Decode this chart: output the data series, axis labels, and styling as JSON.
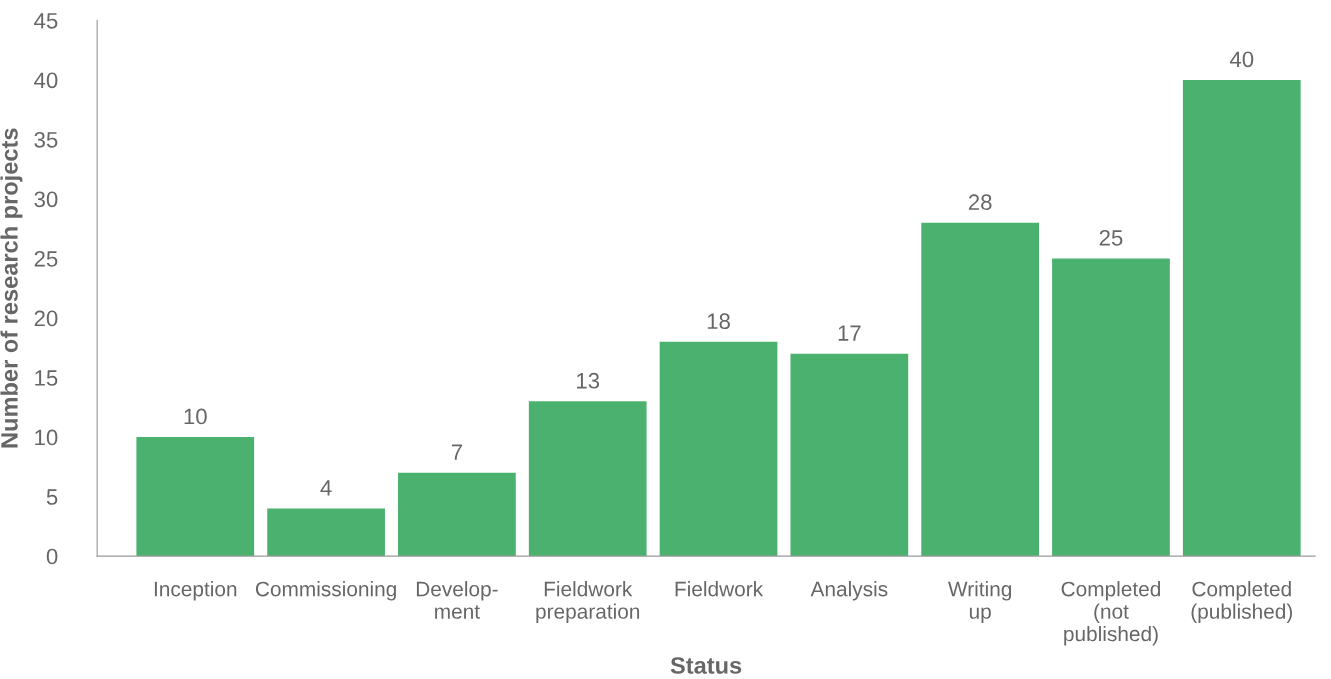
{
  "chart_data": {
    "type": "bar",
    "categories": [
      "Inception",
      "Commissioning",
      "Develop-\nment",
      "Fieldwork\npreparation",
      "Fieldwork",
      "Analysis",
      "Writing\nup",
      "Completed\n(not\npublished)",
      "Completed\n(published)"
    ],
    "values": [
      10,
      4,
      7,
      13,
      18,
      17,
      28,
      25,
      40
    ],
    "color": "#4ab26e",
    "xlabel": "Status",
    "ylabel": "Number of research projects",
    "ylim": [
      0,
      45
    ],
    "yticks": [
      0,
      5,
      10,
      15,
      20,
      25,
      30,
      35,
      40,
      45
    ],
    "data_labels": true,
    "grid": false,
    "legend": false
  }
}
